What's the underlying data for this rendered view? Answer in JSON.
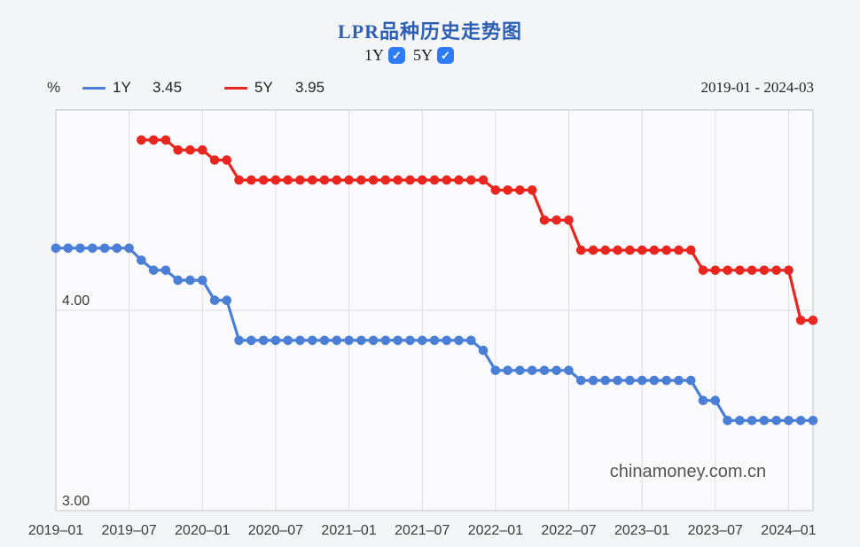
{
  "page": {
    "background": "#f4f5f7"
  },
  "header": {
    "title": "LPR品种历史走势图",
    "toggles": [
      {
        "label": "1Y",
        "checked": true
      },
      {
        "label": "5Y",
        "checked": true
      }
    ]
  },
  "icons": {
    "checkmark": "✓"
  },
  "chart_header": {
    "unit_label": "%",
    "legend": [
      {
        "label": "1Y",
        "value": "3.45",
        "color": "#4b7fd6"
      },
      {
        "label": "5Y",
        "value": "3.95",
        "color": "#e8261f"
      }
    ],
    "date_range": "2019-01 - 2024-03"
  },
  "watermark": "chinamoney.com.cn",
  "chart_data": {
    "type": "line",
    "title": "LPR品种历史走势图",
    "ylabel": "%",
    "grid": true,
    "legend_position": "top-left",
    "y_range": [
      3.0,
      5.0
    ],
    "y_ticks": [
      {
        "label": "4.00",
        "value": 4.0
      },
      {
        "label": "3.00",
        "value": 3.0
      }
    ],
    "x_ticks": [
      {
        "label": "2019–01",
        "index": 0
      },
      {
        "label": "2019–07",
        "index": 6
      },
      {
        "label": "2020–01",
        "index": 12
      },
      {
        "label": "2020–07",
        "index": 18
      },
      {
        "label": "2021–01",
        "index": 24
      },
      {
        "label": "2021–07",
        "index": 30
      },
      {
        "label": "2022–01",
        "index": 36
      },
      {
        "label": "2022–07",
        "index": 42
      },
      {
        "label": "2023–01",
        "index": 48
      },
      {
        "label": "2023–07",
        "index": 54
      },
      {
        "label": "2024–01",
        "index": 60
      }
    ],
    "months": [
      "2019-01",
      "2019-02",
      "2019-03",
      "2019-04",
      "2019-05",
      "2019-06",
      "2019-07",
      "2019-08",
      "2019-09",
      "2019-10",
      "2019-11",
      "2019-12",
      "2020-01",
      "2020-02",
      "2020-03",
      "2020-04",
      "2020-05",
      "2020-06",
      "2020-07",
      "2020-08",
      "2020-09",
      "2020-10",
      "2020-11",
      "2020-12",
      "2021-01",
      "2021-02",
      "2021-03",
      "2021-04",
      "2021-05",
      "2021-06",
      "2021-07",
      "2021-08",
      "2021-09",
      "2021-10",
      "2021-11",
      "2021-12",
      "2022-01",
      "2022-02",
      "2022-03",
      "2022-04",
      "2022-05",
      "2022-06",
      "2022-07",
      "2022-08",
      "2022-09",
      "2022-10",
      "2022-11",
      "2022-12",
      "2023-01",
      "2023-02",
      "2023-03",
      "2023-04",
      "2023-05",
      "2023-06",
      "2023-07",
      "2023-08",
      "2023-09",
      "2023-10",
      "2023-11",
      "2023-12",
      "2024-01",
      "2024-02",
      "2024-03"
    ],
    "series": [
      {
        "name": "1Y",
        "color": "#4b7fd6",
        "values": [
          4.31,
          4.31,
          4.31,
          4.31,
          4.31,
          4.31,
          4.31,
          4.25,
          4.2,
          4.2,
          4.15,
          4.15,
          4.15,
          4.05,
          4.05,
          3.85,
          3.85,
          3.85,
          3.85,
          3.85,
          3.85,
          3.85,
          3.85,
          3.85,
          3.85,
          3.85,
          3.85,
          3.85,
          3.85,
          3.85,
          3.85,
          3.85,
          3.85,
          3.85,
          3.85,
          3.8,
          3.7,
          3.7,
          3.7,
          3.7,
          3.7,
          3.7,
          3.7,
          3.65,
          3.65,
          3.65,
          3.65,
          3.65,
          3.65,
          3.65,
          3.65,
          3.65,
          3.65,
          3.55,
          3.55,
          3.45,
          3.45,
          3.45,
          3.45,
          3.45,
          3.45,
          3.45,
          3.45
        ]
      },
      {
        "name": "5Y",
        "color": "#e8261f",
        "values": [
          null,
          null,
          null,
          null,
          null,
          null,
          null,
          4.85,
          4.85,
          4.85,
          4.8,
          4.8,
          4.8,
          4.75,
          4.75,
          4.65,
          4.65,
          4.65,
          4.65,
          4.65,
          4.65,
          4.65,
          4.65,
          4.65,
          4.65,
          4.65,
          4.65,
          4.65,
          4.65,
          4.65,
          4.65,
          4.65,
          4.65,
          4.65,
          4.65,
          4.65,
          4.6,
          4.6,
          4.6,
          4.6,
          4.45,
          4.45,
          4.45,
          4.3,
          4.3,
          4.3,
          4.3,
          4.3,
          4.3,
          4.3,
          4.3,
          4.3,
          4.3,
          4.2,
          4.2,
          4.2,
          4.2,
          4.2,
          4.2,
          4.2,
          4.2,
          3.95,
          3.95
        ]
      }
    ]
  }
}
